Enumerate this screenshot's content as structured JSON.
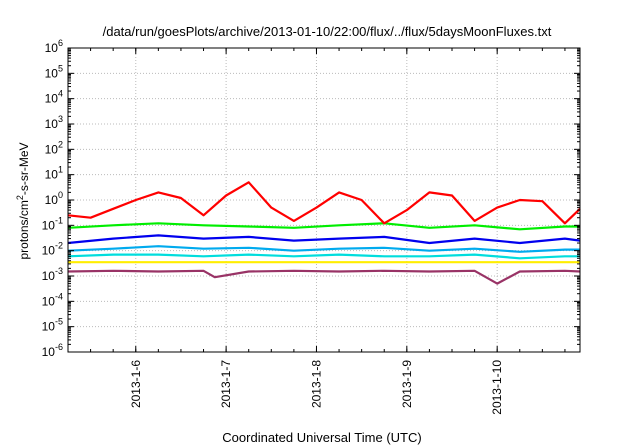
{
  "chart_data": {
    "type": "line",
    "title": "/data/run/goesPlots/archive/2013-01-10/22:00/flux/../flux/5daysMoonFluxes.txt",
    "xlabel": "Coordinated Universal Time (UTC)",
    "ylabel": "protons/cm²-s-sr-MeV",
    "y_scale": "log",
    "ylim": [
      1e-06,
      1000000.0
    ],
    "y_ticks": [
      {
        "value": 1e-06,
        "base": "10",
        "exp": "-6"
      },
      {
        "value": 1e-05,
        "base": "10",
        "exp": "-5"
      },
      {
        "value": 0.0001,
        "base": "10",
        "exp": "-4"
      },
      {
        "value": 0.001,
        "base": "10",
        "exp": "-3"
      },
      {
        "value": 0.01,
        "base": "10",
        "exp": "-2"
      },
      {
        "value": 0.1,
        "base": "10",
        "exp": "-1"
      },
      {
        "value": 1,
        "base": "10",
        "exp": "0"
      },
      {
        "value": 10,
        "base": "10",
        "exp": "1"
      },
      {
        "value": 100,
        "base": "10",
        "exp": "2"
      },
      {
        "value": 1000,
        "base": "10",
        "exp": "3"
      },
      {
        "value": 10000,
        "base": "10",
        "exp": "4"
      },
      {
        "value": 100000,
        "base": "10",
        "exp": "5"
      },
      {
        "value": 1000000,
        "base": "10",
        "exp": "6"
      }
    ],
    "xlim": [
      "2013-01-05T06:00",
      "2013-01-10T22:00"
    ],
    "x_ticks": [
      "2013-1-6",
      "2013-1-7",
      "2013-1-8",
      "2013-1-9",
      "2013-1-10"
    ],
    "x_tick_dates": [
      "2013-01-06T00:00",
      "2013-01-07T00:00",
      "2013-01-08T00:00",
      "2013-01-09T00:00",
      "2013-01-10T00:00"
    ],
    "grid": true,
    "legend": false,
    "series": [
      {
        "color": "#ff0000",
        "x": [
          "2013-01-05T06:00",
          "2013-01-05T12:00",
          "2013-01-05T18:00",
          "2013-01-06T00:00",
          "2013-01-06T06:00",
          "2013-01-06T12:00",
          "2013-01-06T18:00",
          "2013-01-07T00:00",
          "2013-01-07T06:00",
          "2013-01-07T12:00",
          "2013-01-07T18:00",
          "2013-01-08T00:00",
          "2013-01-08T06:00",
          "2013-01-08T12:00",
          "2013-01-08T18:00",
          "2013-01-09T00:00",
          "2013-01-09T06:00",
          "2013-01-09T12:00",
          "2013-01-09T18:00",
          "2013-01-10T00:00",
          "2013-01-10T06:00",
          "2013-01-10T12:00",
          "2013-01-10T18:00",
          "2013-01-10T22:00"
        ],
        "values": [
          0.25,
          0.2,
          0.45,
          1.0,
          2.0,
          1.2,
          0.25,
          1.5,
          5.0,
          0.5,
          0.15,
          0.5,
          2.0,
          1.0,
          0.12,
          0.4,
          2.0,
          1.5,
          0.15,
          0.5,
          1.0,
          0.9,
          0.12,
          0.45
        ]
      },
      {
        "color": "#00ee00",
        "x": [
          "2013-01-05T06:00",
          "2013-01-05T18:00",
          "2013-01-06T06:00",
          "2013-01-06T18:00",
          "2013-01-07T06:00",
          "2013-01-07T18:00",
          "2013-01-08T06:00",
          "2013-01-08T18:00",
          "2013-01-09T06:00",
          "2013-01-09T18:00",
          "2013-01-10T06:00",
          "2013-01-10T18:00",
          "2013-01-10T22:00"
        ],
        "values": [
          0.08,
          0.1,
          0.12,
          0.1,
          0.09,
          0.08,
          0.1,
          0.12,
          0.08,
          0.1,
          0.07,
          0.09,
          0.09
        ]
      },
      {
        "color": "#0000ee",
        "x": [
          "2013-01-05T06:00",
          "2013-01-05T18:00",
          "2013-01-06T06:00",
          "2013-01-06T18:00",
          "2013-01-07T06:00",
          "2013-01-07T18:00",
          "2013-01-08T06:00",
          "2013-01-08T18:00",
          "2013-01-09T06:00",
          "2013-01-09T18:00",
          "2013-01-10T06:00",
          "2013-01-10T18:00",
          "2013-01-10T22:00"
        ],
        "values": [
          0.02,
          0.03,
          0.04,
          0.03,
          0.035,
          0.025,
          0.03,
          0.035,
          0.02,
          0.03,
          0.02,
          0.03,
          0.025
        ]
      },
      {
        "color": "#00aaee",
        "x": [
          "2013-01-05T06:00",
          "2013-01-05T18:00",
          "2013-01-06T06:00",
          "2013-01-06T18:00",
          "2013-01-07T06:00",
          "2013-01-07T18:00",
          "2013-01-08T06:00",
          "2013-01-08T18:00",
          "2013-01-09T06:00",
          "2013-01-09T18:00",
          "2013-01-10T06:00",
          "2013-01-10T18:00",
          "2013-01-10T22:00"
        ],
        "values": [
          0.01,
          0.012,
          0.015,
          0.012,
          0.013,
          0.01,
          0.012,
          0.013,
          0.01,
          0.012,
          0.009,
          0.011,
          0.011
        ]
      },
      {
        "color": "#00dddd",
        "x": [
          "2013-01-05T06:00",
          "2013-01-05T18:00",
          "2013-01-06T06:00",
          "2013-01-06T18:00",
          "2013-01-07T06:00",
          "2013-01-07T18:00",
          "2013-01-08T06:00",
          "2013-01-08T18:00",
          "2013-01-09T06:00",
          "2013-01-09T18:00",
          "2013-01-10T06:00",
          "2013-01-10T18:00",
          "2013-01-10T22:00"
        ],
        "values": [
          0.006,
          0.007,
          0.007,
          0.006,
          0.007,
          0.006,
          0.007,
          0.006,
          0.006,
          0.007,
          0.005,
          0.006,
          0.006
        ]
      },
      {
        "color": "#ffee00",
        "x": [
          "2013-01-05T06:00",
          "2013-01-05T18:00",
          "2013-01-06T06:00",
          "2013-01-06T18:00",
          "2013-01-07T06:00",
          "2013-01-07T18:00",
          "2013-01-08T06:00",
          "2013-01-08T18:00",
          "2013-01-09T06:00",
          "2013-01-09T18:00",
          "2013-01-10T06:00",
          "2013-01-10T18:00",
          "2013-01-10T22:00"
        ],
        "values": [
          0.0035,
          0.0035,
          0.0035,
          0.0035,
          0.0035,
          0.0035,
          0.0035,
          0.0035,
          0.0035,
          0.0035,
          0.0035,
          0.0035,
          0.0035
        ]
      },
      {
        "color": "#993366",
        "x": [
          "2013-01-05T06:00",
          "2013-01-05T18:00",
          "2013-01-06T06:00",
          "2013-01-06T18:00",
          "2013-01-06T21:00",
          "2013-01-07T06:00",
          "2013-01-07T18:00",
          "2013-01-08T06:00",
          "2013-01-08T18:00",
          "2013-01-09T06:00",
          "2013-01-09T18:00",
          "2013-01-10T00:00",
          "2013-01-10T06:00",
          "2013-01-10T18:00",
          "2013-01-10T22:00"
        ],
        "values": [
          0.0015,
          0.0016,
          0.0015,
          0.0016,
          0.0009,
          0.0015,
          0.0016,
          0.0015,
          0.0016,
          0.0015,
          0.0016,
          0.0005,
          0.0015,
          0.0016,
          0.0015
        ]
      }
    ]
  }
}
